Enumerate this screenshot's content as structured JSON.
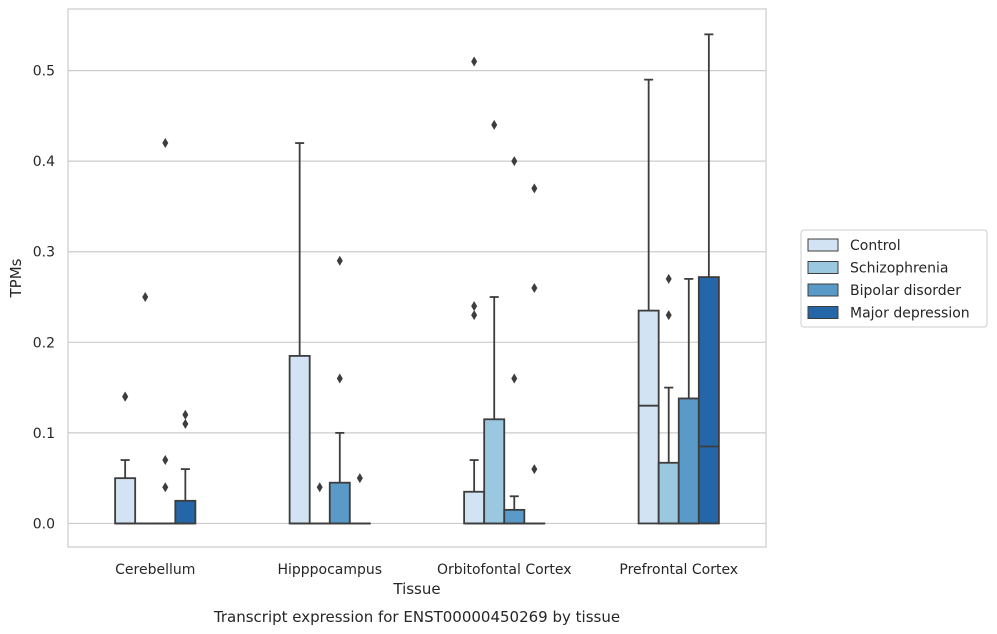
{
  "chart_data": {
    "type": "boxplot",
    "xlabel": "Tissue",
    "ylabel": "TPMs",
    "caption": "Transcript expression for ENST00000450269 by tissue",
    "ylim": [
      -0.026,
      0.568
    ],
    "yticks": [
      "0.0",
      "0.1",
      "0.2",
      "0.3",
      "0.4",
      "0.5"
    ],
    "grid": "horizontal",
    "legend_position": "right",
    "categories": [
      "Cerebellum",
      "Hipppocampus",
      "Orbitofontal Cortex",
      "Prefrontal Cortex"
    ],
    "series": [
      {
        "name": "Control",
        "color": "#d2e3f3",
        "boxes": [
          {
            "q1": 0.0,
            "median": 0.0,
            "q3": 0.05,
            "whisker_low": 0.0,
            "whisker_high": 0.07,
            "outliers": [
              0.14,
              0.14
            ]
          },
          {
            "q1": 0.0,
            "median": 0.0,
            "q3": 0.185,
            "whisker_low": 0.0,
            "whisker_high": 0.42,
            "outliers": []
          },
          {
            "q1": 0.0,
            "median": 0.0,
            "q3": 0.035,
            "whisker_low": 0.0,
            "whisker_high": 0.07,
            "outliers": [
              0.23,
              0.24,
              0.51
            ]
          },
          {
            "q1": 0.0,
            "median": 0.13,
            "q3": 0.235,
            "whisker_low": 0.0,
            "whisker_high": 0.49,
            "outliers": []
          }
        ]
      },
      {
        "name": "Schizophrenia",
        "color": "#9ac8e0",
        "boxes": [
          {
            "q1": 0.0,
            "median": 0.0,
            "q3": 0.0,
            "whisker_low": 0.0,
            "whisker_high": 0.0,
            "outliers": [
              0.25
            ]
          },
          {
            "q1": 0.0,
            "median": 0.0,
            "q3": 0.0,
            "whisker_low": 0.0,
            "whisker_high": 0.0,
            "outliers": [
              0.04
            ]
          },
          {
            "q1": 0.0,
            "median": 0.0,
            "q3": 0.115,
            "whisker_low": 0.0,
            "whisker_high": 0.25,
            "outliers": [
              0.44
            ]
          },
          {
            "q1": 0.0,
            "median": 0.0,
            "q3": 0.067,
            "whisker_low": 0.0,
            "whisker_high": 0.15,
            "outliers": [
              0.23,
              0.27
            ]
          }
        ]
      },
      {
        "name": "Bipolar disorder",
        "color": "#5a9ac8",
        "boxes": [
          {
            "q1": 0.0,
            "median": 0.0,
            "q3": 0.0,
            "whisker_low": 0.0,
            "whisker_high": 0.0,
            "outliers": [
              0.04,
              0.07,
              0.42
            ]
          },
          {
            "q1": 0.0,
            "median": 0.0,
            "q3": 0.045,
            "whisker_low": 0.0,
            "whisker_high": 0.1,
            "outliers": [
              0.16,
              0.29
            ]
          },
          {
            "q1": 0.0,
            "median": 0.0,
            "q3": 0.015,
            "whisker_low": 0.0,
            "whisker_high": 0.03,
            "outliers": [
              0.16,
              0.4
            ]
          },
          {
            "q1": 0.0,
            "median": 0.0,
            "q3": 0.138,
            "whisker_low": 0.0,
            "whisker_high": 0.27,
            "outliers": []
          }
        ]
      },
      {
        "name": "Major depression",
        "color": "#2566a8",
        "boxes": [
          {
            "q1": 0.0,
            "median": 0.0,
            "q3": 0.025,
            "whisker_low": 0.0,
            "whisker_high": 0.06,
            "outliers": [
              0.11,
              0.12
            ]
          },
          {
            "q1": 0.0,
            "median": 0.0,
            "q3": 0.0,
            "whisker_low": 0.0,
            "whisker_high": 0.0,
            "outliers": [
              0.05
            ]
          },
          {
            "q1": 0.0,
            "median": 0.0,
            "q3": 0.0,
            "whisker_low": 0.0,
            "whisker_high": 0.0,
            "outliers": [
              0.06,
              0.26,
              0.37
            ]
          },
          {
            "q1": 0.0,
            "median": 0.085,
            "q3": 0.272,
            "whisker_low": 0.0,
            "whisker_high": 0.54,
            "outliers": []
          }
        ]
      }
    ]
  }
}
